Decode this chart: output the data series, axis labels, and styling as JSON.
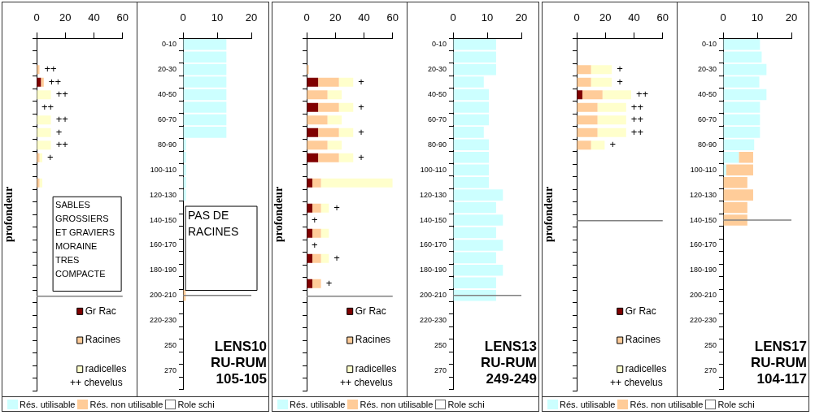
{
  "chart_data": [
    {
      "type": "bar",
      "orientation": "horizontal",
      "stacked": true,
      "ylabel": "profondeur",
      "tick_labels": "x",
      "legend": "bottom right",
      "xlim": [
        0,
        60
      ],
      "xticks": [
        0,
        20,
        40,
        60
      ],
      "categories": [
        "0-10",
        null,
        "20-30",
        null,
        "40-50",
        null,
        "60-70",
        null,
        "80-90",
        null,
        "100-110",
        null,
        "120-130",
        null,
        "140-150",
        null,
        "160-170",
        null,
        "180-190",
        null,
        "200-210",
        null,
        "220-230",
        null,
        "250",
        null,
        "270",
        null
      ],
      "series": [
        {
          "name": "Gr Rac",
          "color": "#800000",
          "values": [
            null,
            null,
            null,
            3,
            null,
            null,
            null,
            null,
            null,
            null,
            null,
            null,
            null,
            null,
            null,
            null,
            null,
            null,
            null,
            null,
            null,
            null,
            null,
            null,
            null,
            null,
            null,
            null
          ]
        },
        {
          "name": "Racines",
          "color": "#ffcc99",
          "values": [
            null,
            null,
            2,
            2,
            null,
            null,
            null,
            null,
            null,
            2,
            null,
            2,
            null,
            null,
            null,
            null,
            null,
            null,
            null,
            null,
            null,
            null,
            null,
            null,
            null,
            null,
            null,
            null
          ]
        },
        {
          "name": "radicelles",
          "color": "#ffffcc",
          "values": [
            null,
            null,
            null,
            null,
            10,
            null,
            10,
            10,
            10,
            2,
            null,
            2,
            null,
            null,
            null,
            null,
            null,
            null,
            null,
            null,
            null,
            null,
            null,
            null,
            null,
            null,
            null,
            null
          ],
          "value_labels": [
            null,
            null,
            "++",
            "++",
            "++",
            "++",
            "++",
            "+",
            "++",
            "+",
            null,
            null,
            null,
            null,
            null,
            null,
            null,
            null,
            null,
            null,
            null,
            null,
            null,
            null,
            null,
            null,
            null,
            null
          ]
        }
      ],
      "ref_lines": [
        {
          "axis": "y",
          "value": "200-210",
          "color": "#808080"
        }
      ],
      "annotations": [
        "++ chevelus",
        "SABLES\nGROSSIERS\nET GRAVIERS\nMORAINE\nTRES\nCOMPACTE"
      ]
    },
    {
      "type": "bar",
      "orientation": "horizontal",
      "stacked": true,
      "title": "LENS10\nRU-RUM\n105-105",
      "legend": "bottom",
      "xlim": [
        0,
        20
      ],
      "xticks": [
        0,
        10,
        20
      ],
      "categories": [
        "0-10",
        null,
        "20-30",
        null,
        "40-50",
        null,
        "60-70",
        null,
        "80-90",
        null,
        "100-110",
        null,
        "120-130",
        null,
        "140-150",
        null,
        "160-170",
        null,
        "180-190",
        null,
        "200-210",
        null,
        "220-230",
        null,
        "250",
        null,
        "270",
        null
      ],
      "series": [
        {
          "name": "Rés. utilisable",
          "color": "#ccffff",
          "values": [
            12.7,
            12.7,
            12.7,
            12.7,
            12.7,
            12.7,
            12.7,
            12.7,
            0.9,
            0.9,
            0.9,
            0.9,
            0.9,
            null,
            null,
            null,
            null,
            null,
            null,
            null,
            null,
            null,
            null,
            null,
            null,
            null,
            null,
            null
          ]
        },
        {
          "name": "Rés. non utilisable",
          "color": "#ffcc99",
          "values": [
            null,
            null,
            null,
            null,
            null,
            null,
            null,
            null,
            null,
            null,
            null,
            null,
            null,
            null,
            null,
            null,
            null,
            null,
            null,
            null,
            0.8,
            null,
            null,
            null,
            null,
            null,
            null,
            null
          ]
        },
        {
          "name": "Role schi",
          "color": "#ffffff",
          "values": [
            null,
            null,
            null,
            null,
            null,
            null,
            null,
            null,
            null,
            null,
            null,
            null,
            null,
            null,
            null,
            null,
            null,
            null,
            null,
            null,
            null,
            null,
            null,
            null,
            null,
            null,
            null,
            null
          ]
        }
      ],
      "ref_lines": [
        {
          "axis": "y",
          "value": "200-210",
          "color": "#808080"
        }
      ],
      "annotations": [
        "PAS DE\nRACINES"
      ]
    },
    {
      "type": "bar",
      "orientation": "horizontal",
      "stacked": true,
      "ylabel": "profondeur",
      "tick_labels": "x",
      "legend": "bottom right",
      "xlim": [
        0,
        60
      ],
      "xticks": [
        0,
        20,
        40,
        60
      ],
      "categories": [
        "0-10",
        null,
        "20-30",
        null,
        "40-50",
        null,
        "60-70",
        null,
        "80-90",
        null,
        "100-110",
        null,
        "120-130",
        null,
        "140-150",
        null,
        "160-170",
        null,
        "180-190",
        null,
        "200-210",
        null,
        "220-230",
        null,
        "250",
        null,
        "270",
        null
      ],
      "series": [
        {
          "name": "Gr Rac",
          "color": "#800000",
          "values": [
            null,
            null,
            null,
            8,
            null,
            8,
            null,
            8,
            null,
            8,
            null,
            4,
            null,
            4,
            null,
            4,
            null,
            4,
            null,
            4,
            null,
            null,
            null,
            null,
            null,
            null,
            null,
            null
          ]
        },
        {
          "name": "Racines",
          "color": "#ffcc99",
          "values": [
            null,
            null,
            1.5,
            14.5,
            14.5,
            14.5,
            14.5,
            14.5,
            14.5,
            14.5,
            null,
            6,
            null,
            6,
            null,
            6,
            null,
            6,
            null,
            6,
            null,
            null,
            null,
            null,
            null,
            null,
            null,
            null
          ]
        },
        {
          "name": "radicelles",
          "color": "#ffffcc",
          "values": [
            null,
            null,
            null,
            10,
            10,
            10,
            10,
            10,
            10,
            10,
            null,
            50,
            null,
            5.5,
            null,
            5.5,
            null,
            5.5,
            null,
            null,
            null,
            null,
            null,
            null,
            null,
            null,
            null,
            null
          ],
          "value_labels": [
            null,
            null,
            null,
            "+",
            null,
            "+",
            null,
            "+",
            null,
            "+",
            null,
            null,
            null,
            "+",
            "+",
            null,
            "+",
            "+",
            null,
            "+",
            null,
            null,
            null,
            null,
            null,
            null,
            null,
            null
          ]
        }
      ],
      "ref_lines": [
        {
          "axis": "y",
          "value": "200-210",
          "color": "#808080"
        }
      ],
      "annotations": [
        "++ chevelus"
      ]
    },
    {
      "type": "bar",
      "orientation": "horizontal",
      "stacked": true,
      "title": "LENS13\nRU-RUM\n249-249",
      "legend": "bottom",
      "xlim": [
        0,
        20
      ],
      "xticks": [
        0,
        10,
        20
      ],
      "categories": [
        "0-10",
        null,
        "20-30",
        null,
        "40-50",
        null,
        "60-70",
        null,
        "80-90",
        null,
        "100-110",
        null,
        "120-130",
        null,
        "140-150",
        null,
        "160-170",
        null,
        "180-190",
        null,
        "200-210",
        null,
        "220-230",
        null,
        "250",
        null,
        "270",
        null
      ],
      "series": [
        {
          "name": "Rés. utilisable",
          "color": "#ccffff",
          "values": [
            12.6,
            12.6,
            12.6,
            9,
            10.5,
            10.5,
            10.5,
            9,
            10.5,
            10.5,
            10.5,
            10.5,
            14.6,
            12.6,
            14.6,
            12.6,
            14.6,
            12.6,
            14.6,
            12.6,
            12.6,
            null,
            null,
            null,
            null,
            null,
            null,
            null
          ]
        },
        {
          "name": "Rés. non utilisable",
          "color": "#ffcc99",
          "values": [
            null,
            null,
            null,
            null,
            null,
            null,
            null,
            null,
            null,
            null,
            null,
            null,
            null,
            null,
            null,
            null,
            null,
            null,
            null,
            null,
            null,
            null,
            null,
            null,
            null,
            null,
            null,
            null
          ]
        },
        {
          "name": "Role schi",
          "color": "#ffffff",
          "values": [
            null,
            null,
            null,
            null,
            null,
            null,
            null,
            null,
            null,
            null,
            null,
            null,
            null,
            null,
            null,
            null,
            null,
            null,
            null,
            null,
            null,
            null,
            null,
            null,
            null,
            null,
            null,
            null
          ]
        }
      ],
      "ref_lines": [
        {
          "axis": "y",
          "value": "200-210",
          "color": "#808080"
        }
      ]
    },
    {
      "type": "bar",
      "orientation": "horizontal",
      "stacked": true,
      "ylabel": "profondeur",
      "tick_labels": "x",
      "legend": "bottom right",
      "xlim": [
        0,
        60
      ],
      "xticks": [
        0,
        20,
        40,
        60
      ],
      "categories": [
        "0-10",
        null,
        "20-30",
        null,
        "40-50",
        null,
        "60-70",
        null,
        "80-90",
        null,
        "100-110",
        null,
        "120-130",
        null,
        "140-150",
        null,
        "160-170",
        null,
        "180-190",
        null,
        "200-210",
        null,
        "220-230",
        null,
        "250",
        null,
        "270",
        null
      ],
      "series": [
        {
          "name": "Gr Rac",
          "color": "#800000",
          "values": [
            null,
            null,
            null,
            null,
            4,
            null,
            null,
            null,
            null,
            null,
            null,
            null,
            null,
            null,
            null,
            null,
            null,
            null,
            null,
            null,
            null,
            null,
            null,
            null,
            null,
            null,
            null,
            null
          ]
        },
        {
          "name": "Racines",
          "color": "#ffcc99",
          "values": [
            null,
            null,
            10,
            10,
            14,
            14.5,
            14.5,
            14.5,
            10,
            null,
            null,
            null,
            null,
            null,
            null,
            null,
            null,
            null,
            null,
            null,
            null,
            null,
            null,
            null,
            null,
            null,
            null,
            null
          ]
        },
        {
          "name": "radicelles",
          "color": "#ffffcc",
          "values": [
            null,
            null,
            14.5,
            14.5,
            20,
            20,
            20,
            20,
            9.5,
            null,
            null,
            null,
            null,
            null,
            null,
            null,
            null,
            null,
            null,
            null,
            null,
            null,
            null,
            null,
            null,
            null,
            null,
            null
          ],
          "value_labels": [
            null,
            null,
            "+",
            "+",
            "++",
            "++",
            "++",
            "++",
            "+",
            null,
            null,
            null,
            null,
            null,
            null,
            null,
            null,
            null,
            null,
            null,
            null,
            null,
            null,
            null,
            null,
            null,
            null,
            null
          ]
        }
      ],
      "ref_lines": [
        {
          "axis": "y",
          "value": "140-150",
          "color": "#808080"
        }
      ],
      "annotations": [
        "++ chevelus"
      ]
    },
    {
      "type": "bar",
      "orientation": "horizontal",
      "stacked": true,
      "title": "LENS17\nRU-RUM\n104-117",
      "legend": "bottom",
      "xlim": [
        0,
        20
      ],
      "xticks": [
        0,
        10,
        20
      ],
      "categories": [
        "0-10",
        null,
        "20-30",
        null,
        "40-50",
        null,
        "60-70",
        null,
        "80-90",
        null,
        "100-110",
        null,
        "120-130",
        null,
        "140-150",
        null,
        "160-170",
        null,
        "180-190",
        null,
        "200-210",
        null,
        "220-230",
        null,
        "250",
        null,
        "270",
        null
      ],
      "series": [
        {
          "name": "Rés. utilisable",
          "color": "#ccffff",
          "values": [
            10.8,
            11.3,
            12.7,
            10.6,
            12.7,
            10.8,
            10.8,
            10.8,
            9.1,
            4.6,
            0.9,
            null,
            null,
            null,
            null,
            null,
            null,
            null,
            null,
            null,
            null,
            null,
            null,
            null,
            null,
            null,
            null,
            null
          ]
        },
        {
          "name": "Rés. non utilisable",
          "color": "#ffcc99",
          "values": [
            null,
            null,
            null,
            null,
            null,
            null,
            null,
            null,
            null,
            4.2,
            7.9,
            7.1,
            8.8,
            7.1,
            7.1,
            null,
            null,
            null,
            null,
            null,
            null,
            null,
            null,
            null,
            null,
            null,
            null,
            null
          ]
        },
        {
          "name": "Role schi",
          "color": "#ffffff",
          "values": [
            null,
            null,
            null,
            null,
            null,
            null,
            null,
            null,
            null,
            null,
            null,
            null,
            null,
            null,
            null,
            null,
            null,
            null,
            null,
            null,
            null,
            null,
            null,
            null,
            null,
            null,
            null,
            null
          ]
        }
      ],
      "ref_lines": [
        {
          "axis": "y",
          "value": "140-150",
          "color": "#808080"
        }
      ]
    }
  ]
}
